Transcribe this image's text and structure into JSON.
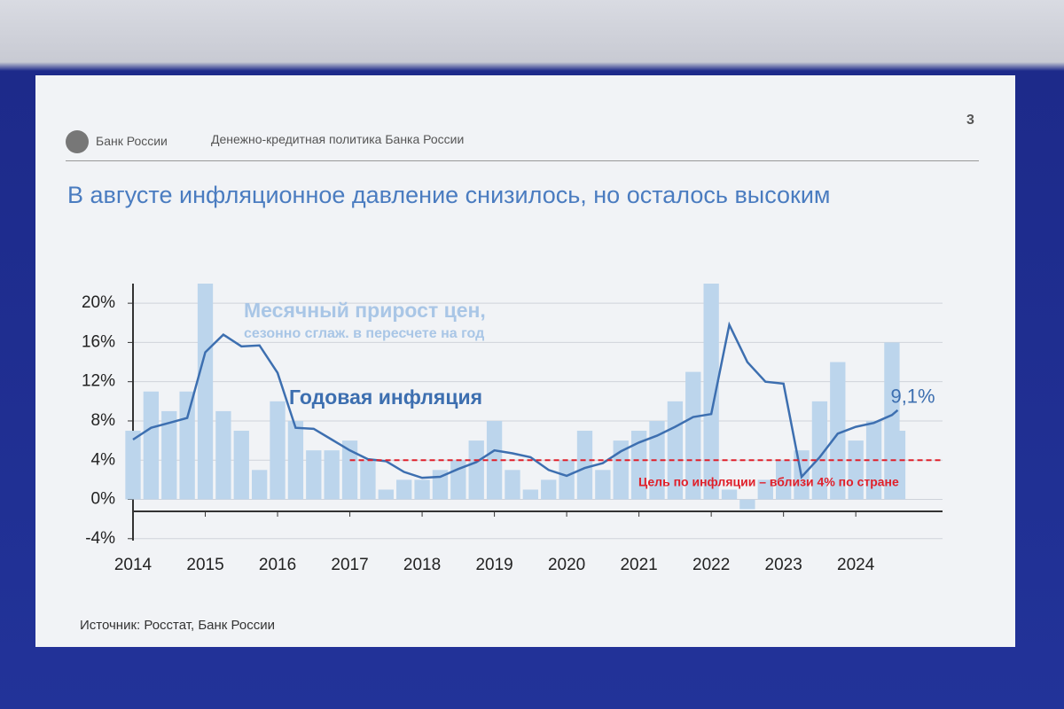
{
  "header": {
    "brand": "Банк России",
    "section": "Денежно-кредитная политика Банка России",
    "page": "3",
    "title": "В августе инфляционное давление снизилось, но осталось высоким",
    "source": "Источник: Росстат, Банк России"
  },
  "chart_data": {
    "type": "combo",
    "x": [
      2014,
      2014.25,
      2014.5,
      2014.75,
      2015,
      2015.25,
      2015.5,
      2015.75,
      2016,
      2016.25,
      2016.5,
      2016.75,
      2017,
      2017.25,
      2017.5,
      2017.75,
      2018,
      2018.25,
      2018.5,
      2018.75,
      2019,
      2019.25,
      2019.5,
      2019.75,
      2020,
      2020.25,
      2020.5,
      2020.75,
      2021,
      2021.25,
      2021.5,
      2021.75,
      2022,
      2022.25,
      2022.5,
      2022.75,
      2023,
      2023.25,
      2023.5,
      2023.75,
      2024,
      2024.25,
      2024.5,
      2024.58
    ],
    "series": [
      {
        "name": "Месячный прирост цен,",
        "name_note": "сезонно сглаж. в пересчете на год",
        "type": "bar",
        "color": "#bcd5ec",
        "values": [
          7,
          11,
          9,
          11,
          22,
          9,
          7,
          3,
          10,
          8,
          5,
          5,
          6,
          4,
          1,
          2,
          2,
          3,
          4,
          6,
          8,
          3,
          1,
          2,
          4,
          7,
          3,
          6,
          7,
          8,
          10,
          13,
          22,
          1,
          -1,
          2,
          4,
          5,
          10,
          14,
          6,
          8,
          16,
          7
        ]
      },
      {
        "name": "Годовая инфляция",
        "type": "line",
        "color": "#3d6fb0",
        "values": [
          6.1,
          7.3,
          7.8,
          8.3,
          15.0,
          16.8,
          15.6,
          15.7,
          12.9,
          7.3,
          7.2,
          6.1,
          5.0,
          4.1,
          3.9,
          2.8,
          2.2,
          2.3,
          3.1,
          3.8,
          5.0,
          4.7,
          4.3,
          3.0,
          2.4,
          3.2,
          3.7,
          4.9,
          5.8,
          6.5,
          7.4,
          8.4,
          8.7,
          17.8,
          14.0,
          12.0,
          11.8,
          2.3,
          4.3,
          6.7,
          7.4,
          7.8,
          8.6,
          9.1
        ],
        "value_labels": [
          null,
          null,
          null,
          null,
          null,
          null,
          null,
          null,
          null,
          null,
          null,
          null,
          null,
          null,
          null,
          null,
          null,
          null,
          null,
          null,
          null,
          null,
          null,
          null,
          null,
          null,
          null,
          null,
          null,
          null,
          null,
          null,
          null,
          null,
          null,
          null,
          null,
          null,
          null,
          null,
          null,
          null,
          null,
          "9,1%"
        ]
      }
    ],
    "target": {
      "value": 4,
      "from": 2017,
      "label": "Цель по инфляции – вблизи 4% по стране",
      "color": "#e0202a"
    },
    "xlim": [
      2014,
      2025.2
    ],
    "xticks": [
      2014,
      2015,
      2016,
      2017,
      2018,
      2019,
      2020,
      2021,
      2022,
      2023,
      2024
    ],
    "ylim": [
      -4.2,
      22
    ],
    "yticks": [
      {
        "value": -4,
        "label": "-4%"
      },
      {
        "value": 0,
        "label": "0%"
      },
      {
        "value": 4,
        "label": "4%"
      },
      {
        "value": 8,
        "label": "8%"
      },
      {
        "value": 12,
        "label": "12%"
      },
      {
        "value": 16,
        "label": "16%"
      },
      {
        "value": 20,
        "label": "20%"
      }
    ],
    "grid": true
  }
}
